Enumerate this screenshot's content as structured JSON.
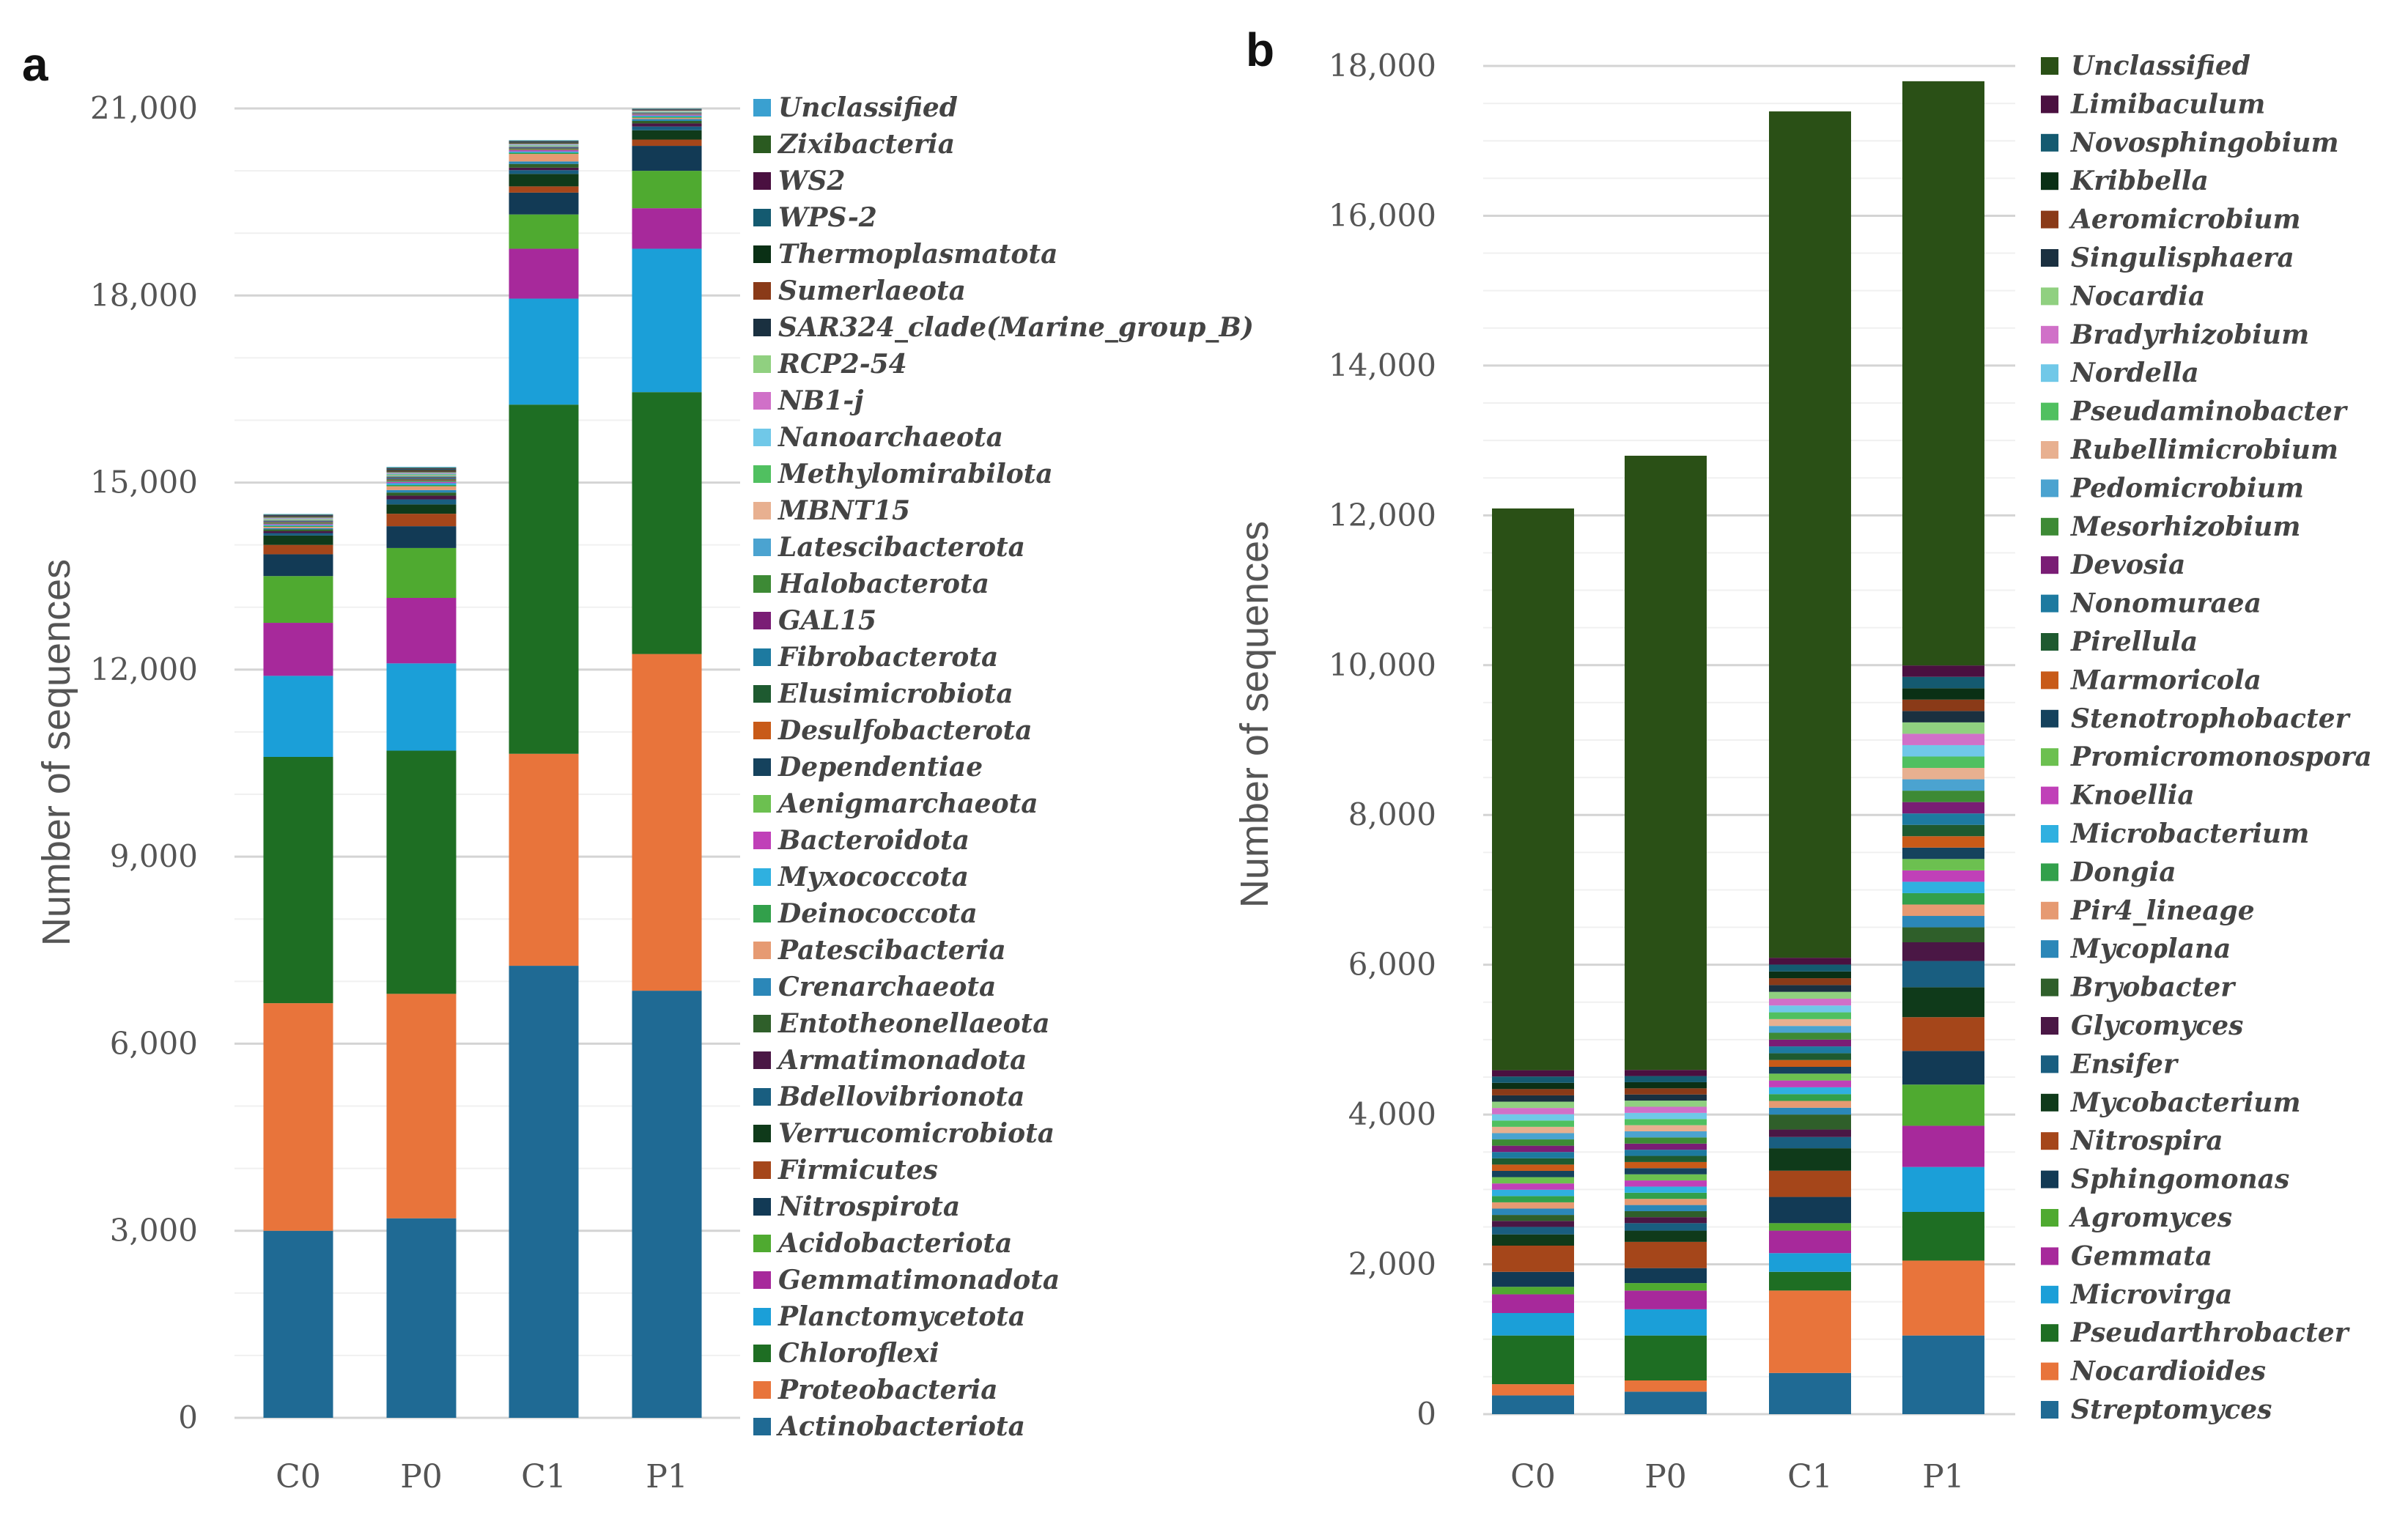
{
  "chart_data": [
    {
      "panel": "a",
      "type": "bar",
      "stacked": true,
      "categories": [
        "C0",
        "P0",
        "C1",
        "P1"
      ],
      "ylabel": "Number of sequences",
      "ylim": [
        0,
        21000
      ],
      "yticks": [
        0,
        3000,
        6000,
        9000,
        12000,
        15000,
        18000,
        21000
      ],
      "ytick_labels": [
        "0",
        "3,000",
        "6,000",
        "9,000",
        "12,000",
        "15,000",
        "18,000",
        "21,000"
      ],
      "grid": true,
      "legend": "right",
      "series": [
        {
          "name": "Actinobacteriota",
          "color": "#1f6a94",
          "values": [
            3000,
            3200,
            7250,
            6850
          ]
        },
        {
          "name": "Proteobacteria",
          "color": "#e8743b",
          "values": [
            3650,
            3600,
            3400,
            5400
          ]
        },
        {
          "name": "Chloroflexi",
          "color": "#1e6e23",
          "values": [
            3950,
            3900,
            5600,
            4200
          ]
        },
        {
          "name": "Planctomycetota",
          "color": "#1b9fd8",
          "values": [
            1300,
            1400,
            1700,
            2300
          ]
        },
        {
          "name": "Gemmatimonadota",
          "color": "#a7299b",
          "values": [
            850,
            1050,
            800,
            650
          ]
        },
        {
          "name": "Acidobacteriota",
          "color": "#4faa30",
          "values": [
            750,
            800,
            550,
            600
          ]
        },
        {
          "name": "Nitrospirota",
          "color": "#123a55",
          "values": [
            350,
            350,
            350,
            400
          ]
        },
        {
          "name": "Firmicutes",
          "color": "#a5461a",
          "values": [
            150,
            200,
            100,
            100
          ]
        },
        {
          "name": "Verrucomicrobiota",
          "color": "#0f3a1a",
          "values": [
            150,
            150,
            200,
            150
          ]
        },
        {
          "name": "Bdellovibrionota",
          "color": "#195e80",
          "values": [
            40,
            80,
            60,
            60
          ]
        },
        {
          "name": "Armatimonadota",
          "color": "#4a1745",
          "values": [
            30,
            60,
            40,
            50
          ]
        },
        {
          "name": "Entotheonellaeota",
          "color": "#2f5f2a",
          "values": [
            30,
            50,
            60,
            40
          ]
        },
        {
          "name": "Crenarchaeota",
          "color": "#2b87b8",
          "values": [
            20,
            40,
            40,
            30
          ]
        },
        {
          "name": "Patescibacteria",
          "color": "#e69a72",
          "values": [
            20,
            60,
            120,
            20
          ]
        },
        {
          "name": "Deinococcota",
          "color": "#32a04b",
          "values": [
            15,
            20,
            20,
            15
          ]
        },
        {
          "name": "Myxococcota",
          "color": "#2fb0e0",
          "values": [
            15,
            30,
            20,
            20
          ]
        },
        {
          "name": "Bacteroidota",
          "color": "#c040b8",
          "values": [
            15,
            20,
            20,
            15
          ]
        },
        {
          "name": "Aenigmarchaeota",
          "color": "#6cc050",
          "values": [
            8,
            12,
            8,
            5
          ]
        },
        {
          "name": "Dependentiae",
          "color": "#15425d",
          "values": [
            8,
            12,
            8,
            5
          ]
        },
        {
          "name": "Desulfobacterota",
          "color": "#c85a18",
          "values": [
            8,
            12,
            8,
            5
          ]
        },
        {
          "name": "Elusimicrobiota",
          "color": "#1e5a30",
          "values": [
            8,
            12,
            8,
            5
          ]
        },
        {
          "name": "Fibrobacterota",
          "color": "#1d7aa0",
          "values": [
            8,
            12,
            8,
            5
          ]
        },
        {
          "name": "GAL15",
          "color": "#7a1d75",
          "values": [
            8,
            12,
            8,
            5
          ]
        },
        {
          "name": "Halobacterota",
          "color": "#3d8a35",
          "values": [
            8,
            12,
            8,
            5
          ]
        },
        {
          "name": "Latescibacterota",
          "color": "#4ba3d0",
          "values": [
            8,
            12,
            8,
            5
          ]
        },
        {
          "name": "MBNT15",
          "color": "#e8b090",
          "values": [
            8,
            12,
            8,
            5
          ]
        },
        {
          "name": "Methylomirabilota",
          "color": "#50c060",
          "values": [
            8,
            12,
            8,
            5
          ]
        },
        {
          "name": "Nanoarchaeota",
          "color": "#70c8e8",
          "values": [
            8,
            12,
            8,
            5
          ]
        },
        {
          "name": "NB1-j",
          "color": "#d070c8",
          "values": [
            8,
            12,
            8,
            5
          ]
        },
        {
          "name": "RCP2-54",
          "color": "#90d080",
          "values": [
            8,
            12,
            8,
            5
          ]
        },
        {
          "name": "SAR324_clade(Marine_group_B)",
          "color": "#1a3040",
          "values": [
            8,
            12,
            8,
            5
          ]
        },
        {
          "name": "Sumerlaeota",
          "color": "#8a3a18",
          "values": [
            8,
            12,
            8,
            5
          ]
        },
        {
          "name": "Thermoplasmatota",
          "color": "#0a3015",
          "values": [
            8,
            12,
            8,
            5
          ]
        },
        {
          "name": "WPS-2",
          "color": "#145a70",
          "values": [
            8,
            12,
            8,
            5
          ]
        },
        {
          "name": "WS2",
          "color": "#4a1040",
          "values": [
            8,
            12,
            8,
            5
          ]
        },
        {
          "name": "Zixibacteria",
          "color": "#2a5a20",
          "values": [
            8,
            12,
            8,
            5
          ]
        },
        {
          "name": "Unclassified",
          "color": "#3aa0d0",
          "values": [
            8,
            12,
            8,
            5
          ]
        }
      ]
    },
    {
      "panel": "b",
      "type": "bar",
      "stacked": true,
      "categories": [
        "C0",
        "P0",
        "C1",
        "P1"
      ],
      "ylabel": "Number of sequences",
      "ylim": [
        0,
        18000
      ],
      "yticks": [
        0,
        2000,
        4000,
        6000,
        8000,
        10000,
        12000,
        14000,
        16000,
        18000
      ],
      "ytick_labels": [
        "0",
        "2,000",
        "4,000",
        "6,000",
        "8,000",
        "10,000",
        "12,000",
        "14,000",
        "16,000",
        "18,000"
      ],
      "grid": true,
      "legend": "right",
      "series": [
        {
          "name": "Streptomyces",
          "color": "#1f6a94",
          "values": [
            250,
            300,
            550,
            1050
          ]
        },
        {
          "name": "Nocardioides",
          "color": "#e8743b",
          "values": [
            150,
            150,
            1100,
            1000
          ]
        },
        {
          "name": "Pseudarthrobacter",
          "color": "#1e6e23",
          "values": [
            650,
            600,
            250,
            650
          ]
        },
        {
          "name": "Microvirga",
          "color": "#1b9fd8",
          "values": [
            300,
            350,
            250,
            600
          ]
        },
        {
          "name": "Gemmata",
          "color": "#a7299b",
          "values": [
            250,
            250,
            300,
            550
          ]
        },
        {
          "name": "Agromyces",
          "color": "#4faa30",
          "values": [
            100,
            100,
            100,
            550
          ]
        },
        {
          "name": "Sphingomonas",
          "color": "#123a55",
          "values": [
            200,
            200,
            350,
            450
          ]
        },
        {
          "name": "Nitrospira",
          "color": "#a5461a",
          "values": [
            350,
            350,
            350,
            450
          ]
        },
        {
          "name": "Mycobacterium",
          "color": "#0f3a1a",
          "values": [
            150,
            150,
            300,
            400
          ]
        },
        {
          "name": "Ensifer",
          "color": "#195e80",
          "values": [
            100,
            100,
            150,
            350
          ]
        },
        {
          "name": "Glycomyces",
          "color": "#4a1745",
          "values": [
            80,
            80,
            100,
            250
          ]
        },
        {
          "name": "Bryobacter",
          "color": "#2f5f2a",
          "values": [
            80,
            80,
            200,
            200
          ]
        },
        {
          "name": "Mycoplana",
          "color": "#2b87b8",
          "values": [
            84,
            82,
            91,
            152
          ]
        },
        {
          "name": "Pir4_lineage",
          "color": "#e69a72",
          "values": [
            84,
            82,
            91,
            152
          ]
        },
        {
          "name": "Dongia",
          "color": "#32a04b",
          "values": [
            84,
            82,
            91,
            152
          ]
        },
        {
          "name": "Microbacterium",
          "color": "#2fb0e0",
          "values": [
            84,
            82,
            91,
            152
          ]
        },
        {
          "name": "Knoellia",
          "color": "#c040b8",
          "values": [
            84,
            82,
            91,
            152
          ]
        },
        {
          "name": "Promicromonospora",
          "color": "#6cc050",
          "values": [
            84,
            82,
            91,
            152
          ]
        },
        {
          "name": "Stenotrophobacter",
          "color": "#15425d",
          "values": [
            84,
            82,
            91,
            152
          ]
        },
        {
          "name": "Marmoricola",
          "color": "#c85a18",
          "values": [
            84,
            82,
            91,
            152
          ]
        },
        {
          "name": "Pirellula",
          "color": "#1e5a30",
          "values": [
            84,
            82,
            91,
            152
          ]
        },
        {
          "name": "Nonomuraea",
          "color": "#1d7aa0",
          "values": [
            84,
            82,
            91,
            152
          ]
        },
        {
          "name": "Devosia",
          "color": "#7a1d75",
          "values": [
            84,
            82,
            91,
            152
          ]
        },
        {
          "name": "Mesorhizobium",
          "color": "#3d8a35",
          "values": [
            84,
            82,
            91,
            152
          ]
        },
        {
          "name": "Pedomicrobium",
          "color": "#4ba3d0",
          "values": [
            84,
            82,
            91,
            152
          ]
        },
        {
          "name": "Rubellimicrobium",
          "color": "#e8b090",
          "values": [
            84,
            82,
            91,
            152
          ]
        },
        {
          "name": "Pseudaminobacter",
          "color": "#50c060",
          "values": [
            84,
            82,
            91,
            152
          ]
        },
        {
          "name": "Nordella",
          "color": "#70c8e8",
          "values": [
            84,
            82,
            91,
            152
          ]
        },
        {
          "name": "Bradyrhizobium",
          "color": "#d070c8",
          "values": [
            84,
            82,
            91,
            152
          ]
        },
        {
          "name": "Nocardia",
          "color": "#90d080",
          "values": [
            84,
            82,
            91,
            152
          ]
        },
        {
          "name": "Singulisphaera",
          "color": "#1a3040",
          "values": [
            84,
            82,
            91,
            152
          ]
        },
        {
          "name": "Aeromicrobium",
          "color": "#8a3a18",
          "values": [
            84,
            82,
            91,
            152
          ]
        },
        {
          "name": "Kribbella",
          "color": "#0a3015",
          "values": [
            84,
            82,
            91,
            152
          ]
        },
        {
          "name": "Novosphingobium",
          "color": "#145a70",
          "values": [
            84,
            82,
            91,
            152
          ]
        },
        {
          "name": "Limibaculum",
          "color": "#4a1040",
          "values": [
            84,
            82,
            91,
            152
          ]
        },
        {
          "name": "Unclassified",
          "color": "#2a5016",
          "values": [
            7500,
            8200,
            11300,
            7800
          ]
        }
      ]
    }
  ]
}
